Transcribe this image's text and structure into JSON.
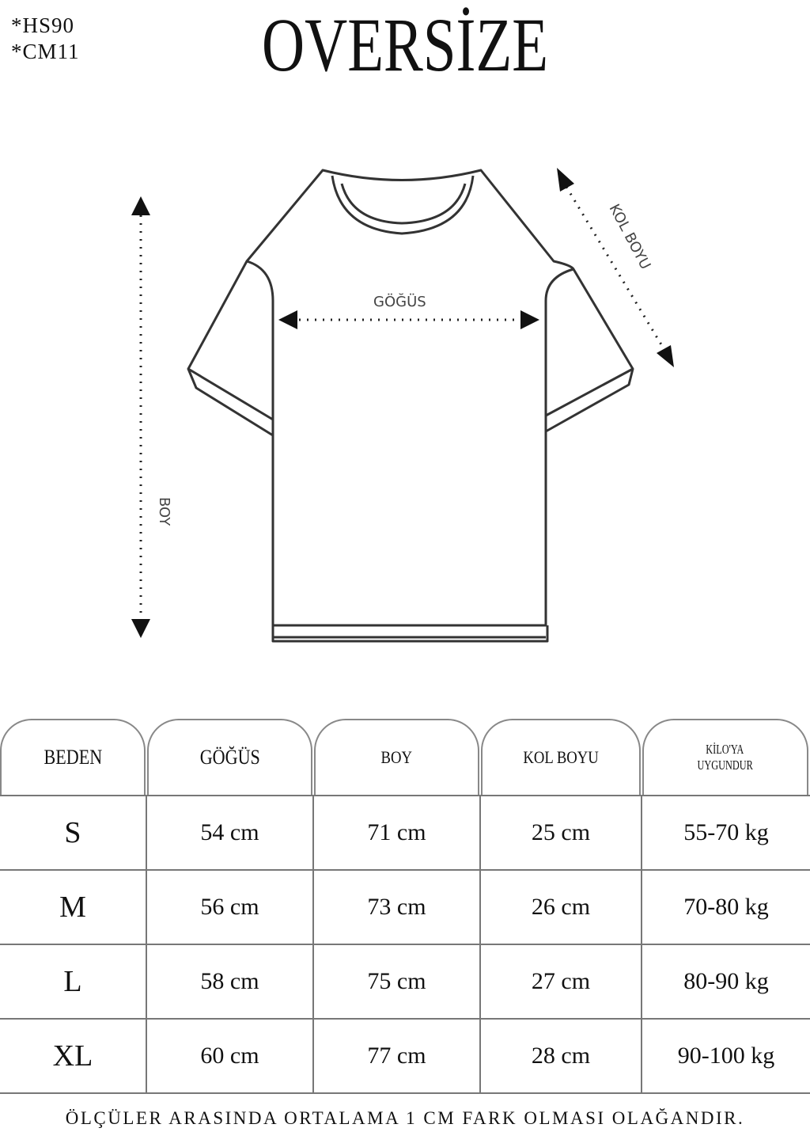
{
  "codes": [
    "*HS90",
    "*CM11"
  ],
  "title": "OVERSİZE",
  "diagram": {
    "chest_label": "GÖĞÜS",
    "length_label": "BOY",
    "sleeve_label": "KOL BOYU"
  },
  "table": {
    "headers": [
      "BEDEN",
      "GÖĞÜS",
      "BOY",
      "KOL BOYU",
      "KİLO'YA UYGUNDUR"
    ],
    "header_weight_lines": [
      "KİLO'YA",
      "UYGUNDUR"
    ],
    "rows": [
      [
        "S",
        "54 cm",
        "71 cm",
        "25  cm",
        "55-70 kg"
      ],
      [
        "M",
        "56 cm",
        "73 cm",
        "26 cm",
        "70-80 kg"
      ],
      [
        "L",
        "58 cm",
        "75 cm",
        "27 cm",
        "80-90 kg"
      ],
      [
        "XL",
        "60 cm",
        "77 cm",
        "28 cm",
        "90-100 kg"
      ]
    ]
  },
  "footer": "ÖLÇÜLER ARASINDA ORTALAMA 1 CM FARK OLMASI OLAĞANDIR."
}
